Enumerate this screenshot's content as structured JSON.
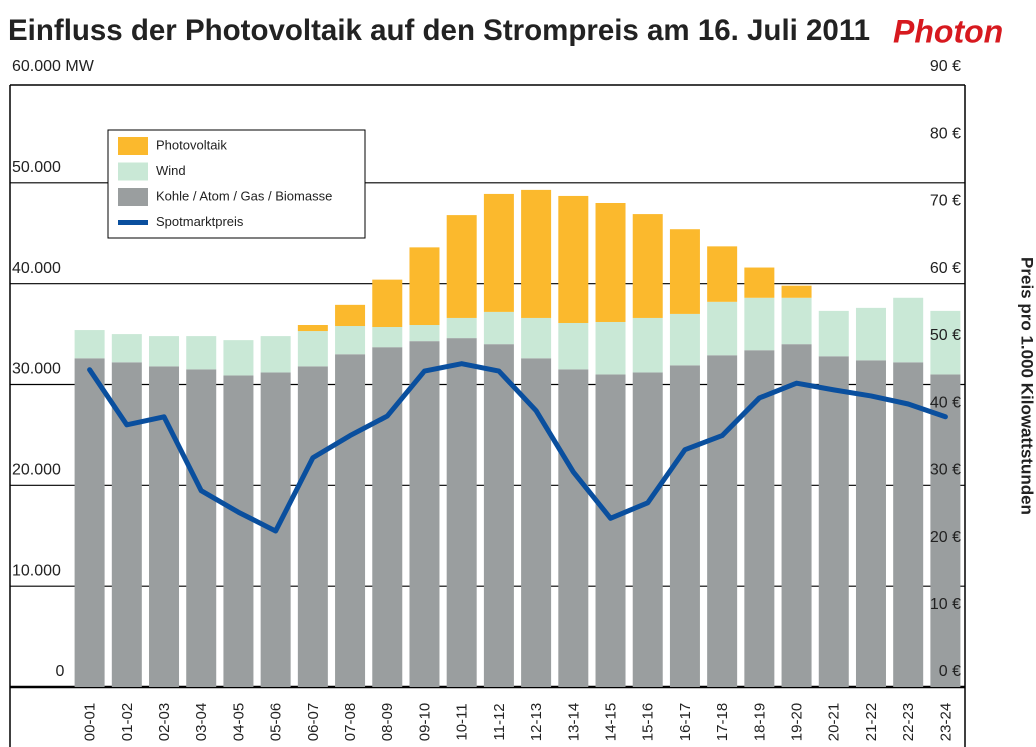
{
  "chart_data": {
    "type": "bar",
    "stacked": true,
    "title": "Einfluss der Photovoltaik auf den Strompreis am 16. Juli 2011",
    "brand": "Photon",
    "y2label": "Preis pro 1.000 Kilowattstunden",
    "categories": [
      "00-01",
      "01-02",
      "02-03",
      "03-04",
      "04-05",
      "05-06",
      "06-07",
      "07-08",
      "08-09",
      "09-10",
      "10-11",
      "11-12",
      "12-13",
      "13-14",
      "14-15",
      "15-16",
      "16-17",
      "17-18",
      "18-19",
      "19-20",
      "20-21",
      "21-22",
      "22-23",
      "23-24"
    ],
    "series": [
      {
        "name": "Kohle / Atom / Gas / Biomasse",
        "color": "#9a9e9f",
        "values": [
          32600,
          32200,
          31800,
          31500,
          30900,
          31200,
          31800,
          33000,
          33700,
          34300,
          34600,
          34000,
          32600,
          31500,
          31000,
          31200,
          31900,
          32900,
          33400,
          34000,
          32800,
          32400,
          32200,
          31000
        ]
      },
      {
        "name": "Wind",
        "color": "#c9e8d6",
        "values": [
          2800,
          2800,
          3000,
          3300,
          3500,
          3600,
          3500,
          2800,
          2000,
          1600,
          2000,
          3200,
          4000,
          4600,
          5200,
          5400,
          5100,
          5300,
          5200,
          4600,
          4500,
          5200,
          6400,
          6300
        ]
      },
      {
        "name": "Photovoltaik",
        "color": "#fbb92d",
        "values": [
          0,
          0,
          0,
          0,
          0,
          0,
          600,
          2100,
          4700,
          7700,
          10200,
          11700,
          12700,
          12600,
          11800,
          10300,
          8400,
          5500,
          3000,
          1200,
          0,
          0,
          0,
          0
        ]
      },
      {
        "name": "Spotmarktpreis",
        "color": "#0a4f9e",
        "type": "line",
        "axis": "y2",
        "values": [
          47.2,
          39.0,
          40.2,
          29.2,
          26.0,
          23.2,
          34.1,
          37.4,
          40.3,
          47.0,
          48.1,
          47.0,
          41.1,
          32.0,
          25.1,
          27.4,
          35.3,
          37.4,
          43.0,
          45.2,
          44.2,
          43.3,
          42.1,
          40.2
        ]
      }
    ],
    "legend_order": [
      2,
      1,
      0,
      3
    ],
    "ylim": [
      0,
      60000
    ],
    "yticks": [
      0,
      {
        "value": 10000,
        "label": "10.000"
      },
      {
        "value": 20000,
        "label": "20.000"
      },
      {
        "value": 30000,
        "label": "30.000"
      },
      {
        "value": 40000,
        "label": "40.000"
      },
      {
        "value": 50000,
        "label": "50.000"
      },
      {
        "value": 60000,
        "label": "60.000 MW"
      }
    ],
    "y2lim": [
      0,
      90
    ],
    "y2ticks": [
      {
        "value": 0,
        "label": "0 €"
      },
      {
        "value": 10,
        "label": "10 €"
      },
      {
        "value": 20,
        "label": "20 €"
      },
      {
        "value": 30,
        "label": "30 €"
      },
      {
        "value": 40,
        "label": "40 €"
      },
      {
        "value": 50,
        "label": "50 €"
      },
      {
        "value": 60,
        "label": "60 €"
      },
      {
        "value": 70,
        "label": "70 €"
      },
      {
        "value": 80,
        "label": "80 €"
      },
      {
        "value": 90,
        "label": "90 €"
      }
    ],
    "grid": true
  }
}
